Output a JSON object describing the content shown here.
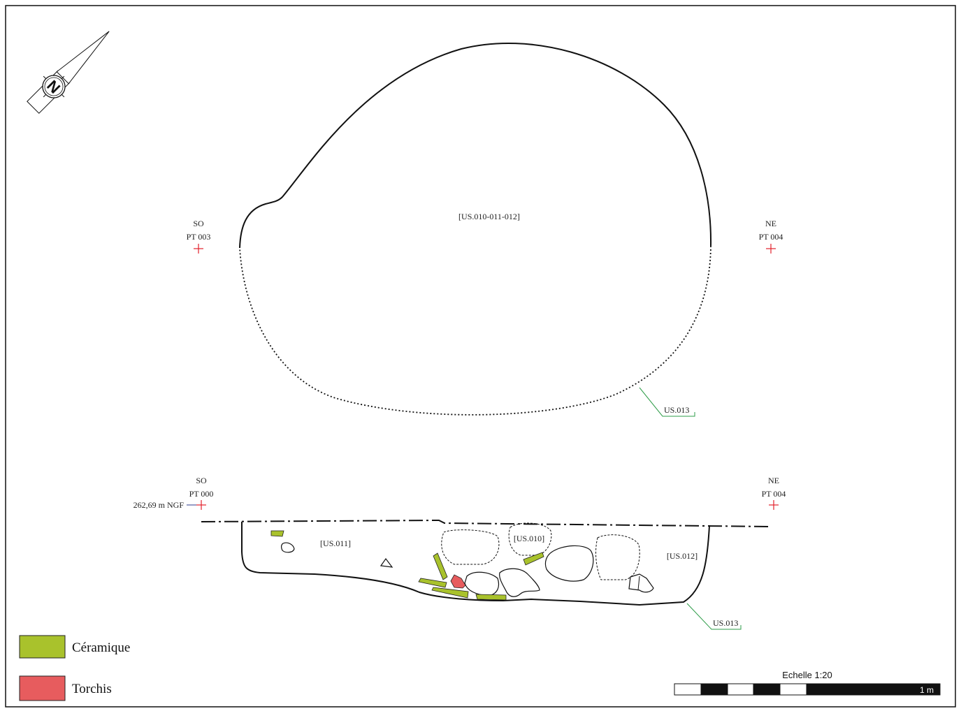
{
  "north_arrow": {
    "letter": "N"
  },
  "plan": {
    "so_label": "SO",
    "pt_left": "PT 003",
    "ne_label": "NE",
    "pt_right": "PT 004",
    "us_label": "[US.010-011-012]",
    "us013_label": "US.013"
  },
  "section": {
    "so_label": "SO",
    "pt_left": "PT 000",
    "altitude": "262,69 m NGF",
    "ne_label": "NE",
    "pt_right": "PT 004",
    "us011": "[US.011]",
    "us010": "[US.010]",
    "us012": "[US.012]",
    "us013_label": "US.013"
  },
  "legend": [
    {
      "label": "Céramique",
      "color": "#a9c22c"
    },
    {
      "label": "Torchis",
      "color": "#e75c5e"
    }
  ],
  "scale": {
    "title": "Echelle 1:20",
    "length_label": "1 m"
  },
  "colors": {
    "ceramic": "#a9c22c",
    "torchis": "#e75c5e",
    "point_red": "#e2202b",
    "us_green": "#2e9c48",
    "altitude_blue": "#2c3b8e"
  }
}
